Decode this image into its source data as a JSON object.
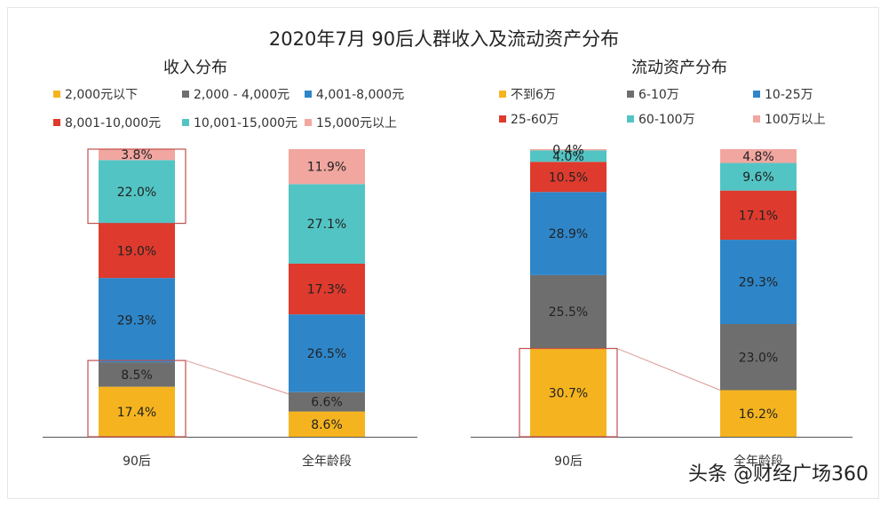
{
  "title": "2020年7月 90后人群收入及流动资产分布",
  "watermark": "头条 @财经广场360",
  "chart_data": [
    {
      "type": "bar",
      "stacked": true,
      "title": "收入分布",
      "categories": [
        "90后",
        "全年龄段"
      ],
      "series": [
        {
          "name": "2,000元以下",
          "color": "#F5B41F",
          "values": [
            17.4,
            8.6
          ],
          "labels": [
            "17.4%",
            "8.6%"
          ]
        },
        {
          "name": "2,000 - 4,000元",
          "color": "#6E6E6E",
          "values": [
            8.5,
            6.6
          ],
          "labels": [
            "8.5%",
            "6.6%"
          ]
        },
        {
          "name": "4,001-8,000元",
          "color": "#2E86C9",
          "values": [
            29.3,
            26.5
          ],
          "labels": [
            "29.3%",
            "26.5%"
          ]
        },
        {
          "name": "8,001-10,000元",
          "color": "#DE3B2E",
          "values": [
            19.0,
            17.3
          ],
          "labels": [
            "19.0%",
            "17.3%"
          ]
        },
        {
          "name": "10,001-15,000元",
          "color": "#53C4C4",
          "values": [
            22.0,
            27.1
          ],
          "labels": [
            "22.0%",
            "27.1%"
          ]
        },
        {
          "name": "15,000元以上",
          "color": "#F2A6A0",
          "values": [
            3.8,
            11.9
          ],
          "labels": [
            "3.8%",
            "11.9%"
          ]
        }
      ],
      "ylim": [
        0,
        100
      ],
      "legend": "top"
    },
    {
      "type": "bar",
      "stacked": true,
      "title": "流动资产分布",
      "categories": [
        "90后",
        "全年龄段"
      ],
      "series": [
        {
          "name": "不到6万",
          "color": "#F5B41F",
          "values": [
            30.7,
            16.2
          ],
          "labels": [
            "30.7%",
            "16.2%"
          ]
        },
        {
          "name": "6-10万",
          "color": "#6E6E6E",
          "values": [
            25.5,
            23.0
          ],
          "labels": [
            "25.5%",
            "23.0%"
          ]
        },
        {
          "name": "10-25万",
          "color": "#2E86C9",
          "values": [
            28.9,
            29.3
          ],
          "labels": [
            "28.9%",
            "29.3%"
          ]
        },
        {
          "name": "25-60万",
          "color": "#DE3B2E",
          "values": [
            10.5,
            17.1
          ],
          "labels": [
            "10.5%",
            "17.1%"
          ]
        },
        {
          "name": "60-100万",
          "color": "#53C4C4",
          "values": [
            4.0,
            9.6
          ],
          "labels": [
            "4.0%",
            "9.6%"
          ]
        },
        {
          "name": "100万以上",
          "color": "#F2A6A0",
          "values": [
            0.4,
            4.8
          ],
          "labels": [
            "0.4%",
            "4.8%"
          ]
        }
      ],
      "ylim": [
        0,
        100
      ],
      "legend": "top"
    }
  ]
}
